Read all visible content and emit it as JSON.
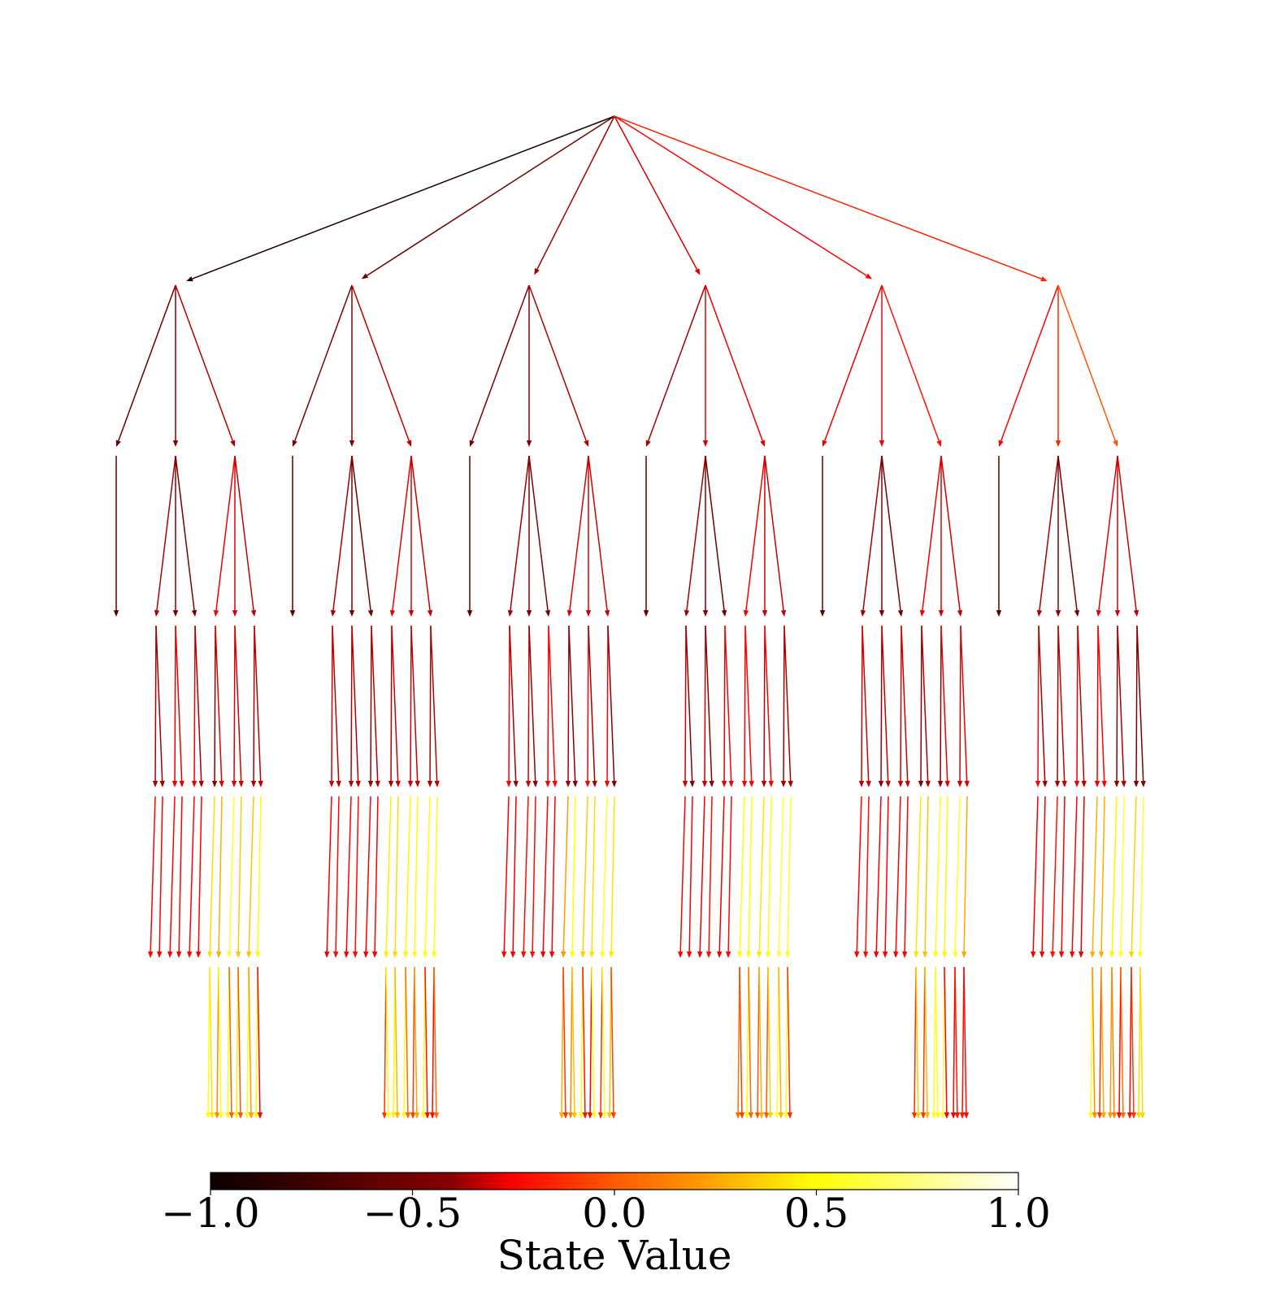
{
  "colorbar": {
    "label": "State Value",
    "min": -1.0,
    "max": 1.0,
    "ticks": [
      {
        "value": -1.0,
        "label": "−1.0"
      },
      {
        "value": -0.5,
        "label": "−0.5"
      },
      {
        "value": 0.0,
        "label": "0.0"
      },
      {
        "value": 0.5,
        "label": "0.5"
      },
      {
        "value": 1.0,
        "label": "1.0"
      }
    ],
    "colormap": "hot"
  },
  "tree": {
    "branching": [
      6,
      3,
      3,
      2,
      2,
      2
    ],
    "root_edge_values": [
      -1.0,
      -0.75,
      -0.6,
      -0.45,
      -0.3,
      -0.15
    ],
    "level2_edge_values": [
      [
        -0.78,
        -0.7,
        -0.55
      ],
      [
        -0.72,
        -0.68,
        -0.52
      ],
      [
        -0.72,
        -0.7,
        -0.55
      ],
      [
        -0.6,
        -0.45,
        -0.4
      ],
      [
        -0.4,
        -0.35,
        -0.2
      ],
      [
        -0.25,
        -0.15,
        0.0
      ]
    ],
    "level3_pattern": [
      [
        -0.8
      ],
      [
        -0.6,
        -0.7,
        -0.75
      ],
      [
        -0.4,
        -0.45,
        -0.5
      ]
    ],
    "level4_value_range": [
      -0.7,
      -0.3
    ],
    "level5_value_range": [
      -0.4,
      0.6
    ],
    "level6_value_range": [
      -0.3,
      0.6
    ]
  }
}
